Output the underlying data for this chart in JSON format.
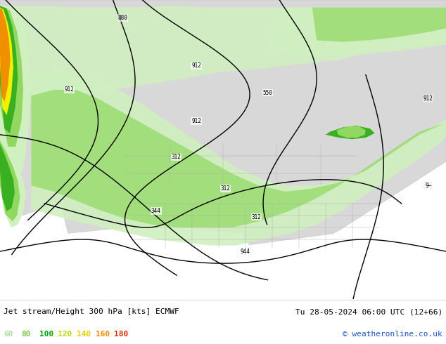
{
  "title_left": "Jet stream/Height 300 hPa [kts] ECMWF",
  "title_right": "Tu 28-05-2024 06:00 UTC (12+66)",
  "copyright": "© weatheronline.co.uk",
  "legend_values": [
    60,
    80,
    100,
    120,
    140,
    160,
    180
  ],
  "legend_colors": [
    "#b0dda0",
    "#78c850",
    "#00a000",
    "#b8d800",
    "#e8d000",
    "#f09000",
    "#e03000"
  ],
  "fig_width": 6.34,
  "fig_height": 4.9,
  "dpi": 100,
  "bg_ocean": "#f0efee",
  "bg_land": "#d8d8d8",
  "bottom_bar_color": "#ffffff",
  "contour_color": "#000000",
  "jet_lgreen": "#d0f0c0",
  "jet_mgreen": "#90d860",
  "jet_dgreen": "#38b020",
  "jet_yellow": "#f0f000",
  "jet_orange": "#f09000",
  "state_border_color": "#aaaaaa",
  "map_border_color": "#888888"
}
